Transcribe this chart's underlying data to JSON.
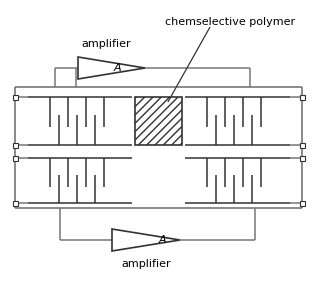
{
  "bg_color": "#ffffff",
  "line_color": "#777777",
  "dark_line": "#333333",
  "amplifier_label": "amplifier",
  "polymer_label": "chemselective polymer",
  "amp_label_char": "A",
  "fig_width": 3.17,
  "fig_height": 2.92,
  "dpi": 100
}
